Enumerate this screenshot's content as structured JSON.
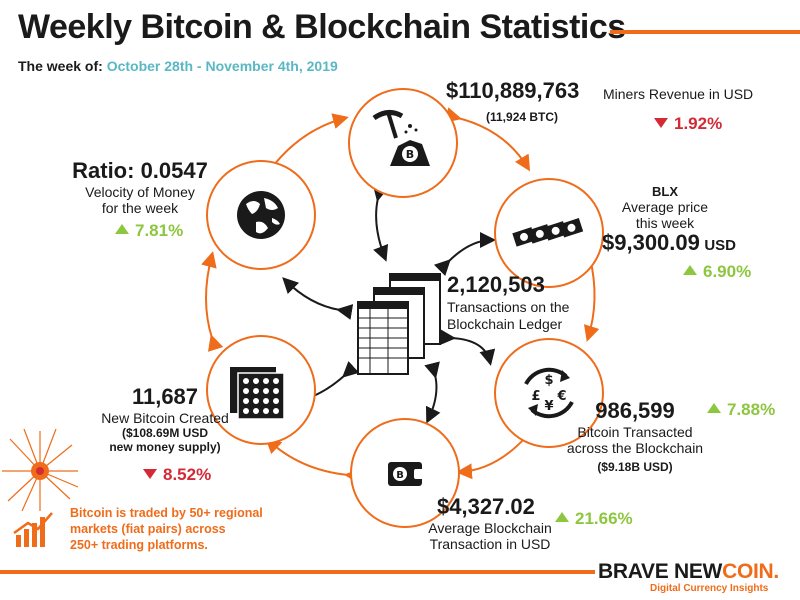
{
  "header": {
    "title": "Weekly Bitcoin & Blockchain Statistics",
    "week_label": "The week of:",
    "week_dates": "October 28th - November 4th, 2019"
  },
  "nodes": {
    "miners": {
      "value": "$110,889,763",
      "label": "Miners Revenue in USD",
      "sub": "(11,924 BTC)",
      "change": "1.92%",
      "direction": "down",
      "icon": "pickaxe-mining-icon"
    },
    "price": {
      "source": "BLX",
      "label_line1": "Average price",
      "label_line2": "this week",
      "value": "$9,300.09",
      "unit": "USD",
      "change": "6.90%",
      "direction": "up",
      "icon": "banknotes-icon"
    },
    "transacted": {
      "value": "986,599",
      "label_line1": "Bitcoin Transacted",
      "label_line2": "across the Blockchain",
      "sub": "($9.18B USD)",
      "change": "7.88%",
      "direction": "up",
      "icon": "currency-exchange-icon"
    },
    "avg_tx": {
      "value": "$4,327.02",
      "label_line1": "Average Blockchain",
      "label_line2": "Transaction in USD",
      "change": "21.66%",
      "direction": "up",
      "icon": "wallet-icon"
    },
    "new_coins": {
      "value": "11,687",
      "label": "New Bitcoin Created",
      "sub_line1": "($108.69M USD",
      "sub_line2": "new money supply)",
      "change": "8.52%",
      "direction": "down",
      "icon": "coin-stacks-icon"
    },
    "velocity": {
      "value": "Ratio: 0.0547",
      "label_line1": "Velocity of Money",
      "label_line2": "for the week",
      "change": "7.81%",
      "direction": "up",
      "icon": "globe-icon"
    },
    "ledger": {
      "value": "2,120,503",
      "label_line1": "Transactions on the",
      "label_line2": "Blockchain Ledger",
      "icon": "ledger-documents-icon"
    }
  },
  "note": {
    "line1": "Bitcoin is traded by 50+ regional",
    "line2": "markets (fiat pairs) across",
    "line3": "250+ trading platforms."
  },
  "footer": {
    "brand_part1": "BRAVE NEW",
    "brand_part2": "COIN.",
    "tagline": "Digital Currency Insights"
  },
  "colors": {
    "accent": "#ef6c1a",
    "up": "#8dc63f",
    "down": "#d42a36",
    "date": "#5ab8c4"
  }
}
